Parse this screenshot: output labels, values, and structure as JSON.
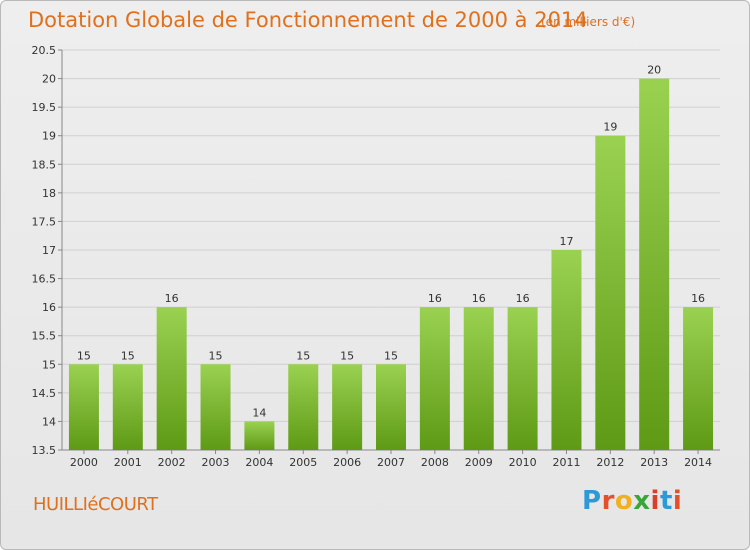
{
  "title": "Dotation Globale de Fonctionnement de 2000 à 2014",
  "subtitle": "(en milliers d'€)",
  "commune": "HUILLIéCOURT",
  "logo": {
    "letters": [
      "P",
      "r",
      "o",
      "x",
      "i",
      "t",
      "i"
    ],
    "colors": [
      "#2d9ad8",
      "#e5502a",
      "#f0b020",
      "#3aa63a",
      "#d9402a",
      "#2d9ad8",
      "#e5502a"
    ]
  },
  "colors": {
    "accent": "#e0701c",
    "bar_light": "#9ad151",
    "bar_dark": "#5e9a15",
    "grid": "#d0d0d0"
  },
  "chart_data": {
    "type": "bar",
    "title": "Dotation Globale de Fonctionnement de 2000 à 2014",
    "subtitle": "(en milliers d'€)",
    "xlabel": "",
    "ylabel": "",
    "categories": [
      "2000",
      "2001",
      "2002",
      "2003",
      "2004",
      "2005",
      "2006",
      "2007",
      "2008",
      "2009",
      "2010",
      "2011",
      "2012",
      "2013",
      "2014"
    ],
    "values": [
      15,
      15,
      16,
      15,
      14,
      15,
      15,
      15,
      16,
      16,
      16,
      17,
      19,
      20,
      16
    ],
    "ylim": [
      13.5,
      20.5
    ],
    "yticks": [
      13.5,
      14,
      14.5,
      15,
      15.5,
      16,
      16.5,
      17,
      17.5,
      18,
      18.5,
      19,
      19.5,
      20,
      20.5
    ],
    "grid": true,
    "legend": "none"
  }
}
